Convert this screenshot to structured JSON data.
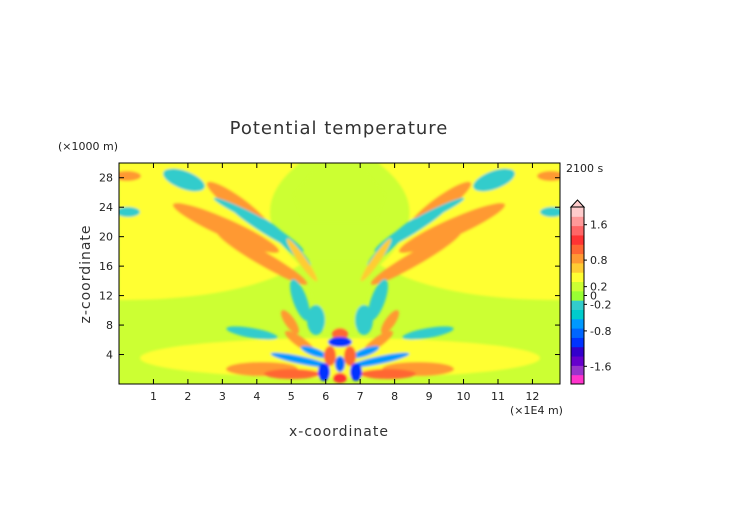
{
  "chart_data": {
    "type": "heatmap",
    "title": "Potential temperature",
    "xlabel": "x-coordinate",
    "ylabel": "z-coordinate",
    "x_unit": "(×1E4 m)",
    "y_unit": "(×1000 m)",
    "time_label": "2100 s",
    "xlim": [
      0,
      12.8
    ],
    "ylim": [
      0,
      30
    ],
    "x_ticks": [
      1,
      2,
      3,
      4,
      5,
      6,
      7,
      8,
      9,
      10,
      11,
      12
    ],
    "y_ticks": [
      4,
      8,
      12,
      16,
      20,
      24,
      28
    ],
    "colorbar": {
      "ticks": [
        "1.6",
        "0.8",
        "0.2",
        "0",
        "-0.2",
        "-0.8",
        "-1.6"
      ],
      "tick_values": [
        1.6,
        0.8,
        0.2,
        0,
        -0.2,
        -0.8,
        -1.6
      ],
      "range": [
        -2.0,
        2.0
      ],
      "colors": [
        "#ff33cc",
        "#9933cc",
        "#6600cc",
        "#3300cc",
        "#0033ff",
        "#0066ff",
        "#0099ff",
        "#00cccc",
        "#33cccc",
        "#99ff33",
        "#ccff33",
        "#ffff33",
        "#ffcc33",
        "#ff9933",
        "#ff6633",
        "#ff3333",
        "#ff6666",
        "#ff9999",
        "#ffcccc"
      ]
    }
  }
}
